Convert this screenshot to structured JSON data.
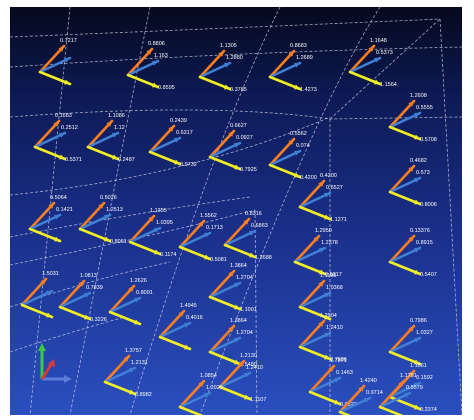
{
  "viewport": {
    "title": ""
  },
  "colors": {
    "x_axis": "#ff7f1e",
    "y_axis": "#f2ee22",
    "z_axis": "#3f7fd6",
    "grid": "#d8d8e8",
    "label": "#ffffff"
  },
  "triads": [
    {
      "labels": [
        "0.7217",
        "",
        ""
      ]
    },
    {
      "labels": [
        "0.8806",
        "1.163",
        "0.8595"
      ]
    },
    {
      "labels": [
        "1.1305",
        "1.2880",
        "0.3785"
      ]
    },
    {
      "labels": [
        "0.8683",
        "1.2689",
        "1.4273"
      ]
    },
    {
      "labels": [
        "1.1648",
        "0.5373",
        "1.1564"
      ]
    },
    {
      "labels": [
        "1.2608",
        "0.5555",
        "0.5708"
      ]
    },
    {
      "labels": [
        "0.1683",
        "0.2512",
        "0.5371"
      ]
    },
    {
      "labels": [
        "1.1086",
        "1.12",
        "0.2487"
      ]
    },
    {
      "labels": [
        "0.2439",
        "0.6317",
        "0.9732"
      ]
    },
    {
      "labels": [
        "0.6627",
        "0.0927",
        "0.7925"
      ]
    },
    {
      "labels": [
        "0.5562",
        "0.074",
        "0.4200"
      ]
    },
    {
      "labels": [
        "0.4200",
        "0.6527",
        "1.1271"
      ]
    },
    {
      "labels": [
        "0.4682",
        "0.573",
        "0.8006"
      ]
    },
    {
      "labels": [
        "0.5064",
        "0.1421",
        ""
      ]
    },
    {
      "labels": [
        "0.5026",
        "1.2513",
        "0.8061"
      ]
    },
    {
      "labels": [
        "1.1355",
        "1.0395",
        "0.1174"
      ]
    },
    {
      "labels": [
        "1.5562",
        "0.1713",
        "0.5081"
      ]
    },
    {
      "labels": [
        "0.8316",
        "0.6863",
        "1.2688"
      ]
    },
    {
      "labels": [
        "1.2950",
        "1.2378",
        "0.5317"
      ]
    },
    {
      "labels": [
        "1.1195",
        "1.0368",
        ""
      ]
    },
    {
      "labels": [
        "0.13376",
        "0.8915",
        "0.5407"
      ]
    },
    {
      "labels": [
        "1.5031",
        "",
        ""
      ]
    },
    {
      "labels": [
        "1.0813",
        "0.7839",
        "0.3226"
      ]
    },
    {
      "labels": [
        "1.2626",
        "0.8091",
        ""
      ]
    },
    {
      "labels": [
        "1.4945",
        "0.4016",
        ""
      ]
    },
    {
      "labels": [
        "1.3864",
        "1.2704",
        "1.1001"
      ]
    },
    {
      "labels": [
        "1.3864",
        "1.2704",
        "1.5480"
      ]
    },
    {
      "labels": [
        "1.2904",
        "1.2410",
        "0.7986"
      ]
    },
    {
      "labels": [
        "0.7986",
        "1.0327",
        ""
      ]
    },
    {
      "labels": [
        "1.1861",
        "0.1592",
        "0.2374"
      ]
    },
    {
      "labels": [
        "1.3757",
        "1.2131",
        "0.8982"
      ]
    },
    {
      "labels": [
        "1.2130",
        "1.2410",
        "1.1107"
      ]
    },
    {
      "labels": [
        "1.7871",
        "0.1463",
        "0.0823"
      ]
    },
    {
      "labels": [
        "1.1781",
        "0.5579",
        "0.1166"
      ]
    },
    {
      "labels": [
        "1.0854",
        "1.2029",
        "1.2825"
      ]
    },
    {
      "labels": [
        "1.4240",
        "0.9714",
        "1.2384"
      ]
    }
  ]
}
